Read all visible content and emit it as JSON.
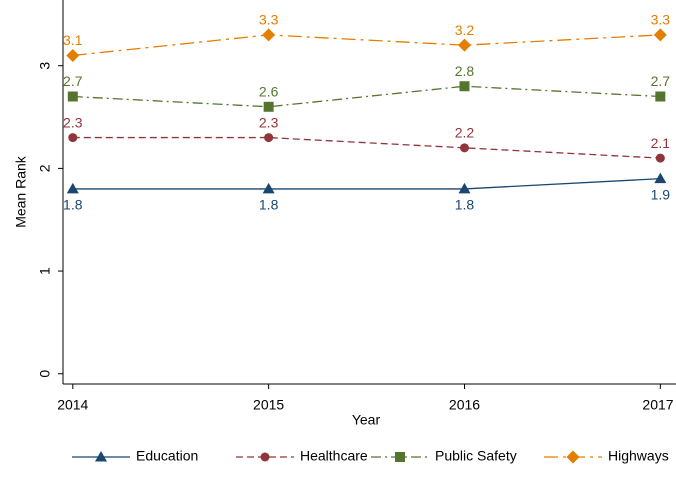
{
  "chart_data": {
    "type": "line",
    "x_label": "Year",
    "y_label": "Mean Rank",
    "x": [
      2014,
      2015,
      2016,
      2017
    ],
    "series": [
      {
        "name": "Education",
        "color": "#1a476f",
        "values": [
          1.8,
          1.8,
          1.8,
          1.9
        ]
      },
      {
        "name": "Healthcare",
        "color": "#90353b",
        "values": [
          2.3,
          2.3,
          2.2,
          2.1
        ]
      },
      {
        "name": "Public Safety",
        "color": "#55752f",
        "values": [
          2.7,
          2.6,
          2.8,
          2.7
        ]
      },
      {
        "name": "Highways",
        "color": "#e37e00",
        "values": [
          3.1,
          3.3,
          3.2,
          3.3
        ]
      }
    ],
    "xlim": [
      2013.95,
      2017.08
    ],
    "xticks": [
      2014,
      2015,
      2016,
      2017
    ],
    "ylim": [
      -0.1,
      3.64
    ],
    "yticks": [
      0,
      1,
      2,
      3
    ],
    "grid": false,
    "legend": "bottom"
  }
}
